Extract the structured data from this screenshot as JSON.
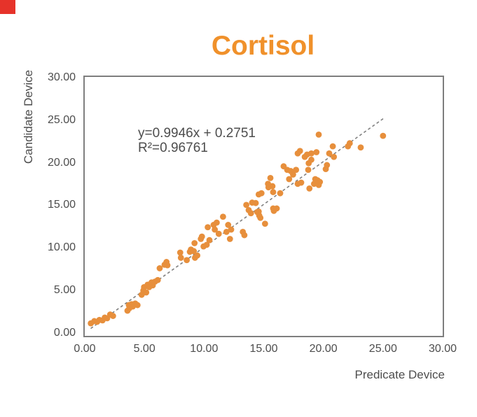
{
  "decorations": {
    "corner_mark_color": "#E6332A"
  },
  "chart_data": {
    "type": "scatter",
    "title": "Cortisol",
    "xlabel": "Predicate Device",
    "ylabel": "Candidate Device",
    "xlim": [
      0,
      30
    ],
    "ylim": [
      0,
      30
    ],
    "grid": false,
    "legend": "none",
    "xtick_labels": [
      "0.00",
      "5.00",
      "10.00",
      "15.00",
      "20.00",
      "25.00",
      "30.00"
    ],
    "ytick_labels": [
      "0.00",
      "5.00",
      "10.00",
      "15.00",
      "20.00",
      "25.00",
      "30.00"
    ],
    "annotation": {
      "equation": "y=0.9946x + 0.2751",
      "r_squared": "R²=0.96761"
    },
    "trendline": {
      "slope": 0.9946,
      "intercept": 0.2751,
      "x_start": 0.5,
      "x_end": 25.1,
      "style": "dashed",
      "color": "#7F7F7F"
    },
    "colors": {
      "points": "#E78F3C",
      "title": "#F0912B",
      "axis_text": "#4D4D4D",
      "border": "#7E7E7E"
    },
    "point_radius": 4.4,
    "points": [
      [
        0.51,
        1.37
      ],
      [
        0.8,
        1.63
      ],
      [
        1.04,
        1.55
      ],
      [
        1.23,
        1.77
      ],
      [
        1.49,
        1.72
      ],
      [
        1.68,
        2.04
      ],
      [
        1.88,
        1.96
      ],
      [
        2.13,
        2.4
      ],
      [
        2.37,
        2.23
      ],
      [
        3.58,
        2.84
      ],
      [
        3.74,
        3.13
      ],
      [
        3.7,
        3.49
      ],
      [
        3.93,
        3.6
      ],
      [
        4.03,
        3.33
      ],
      [
        4.23,
        3.68
      ],
      [
        4.42,
        3.49
      ],
      [
        4.77,
        4.69
      ],
      [
        4.91,
        5.18
      ],
      [
        4.97,
        5.58
      ],
      [
        5.15,
        4.96
      ],
      [
        5.27,
        5.86
      ],
      [
        5.4,
        5.58
      ],
      [
        5.6,
        6.13
      ],
      [
        5.7,
        5.78
      ],
      [
        5.89,
        6.22
      ],
      [
        6.12,
        6.4
      ],
      [
        6.28,
        7.77
      ],
      [
        6.69,
        8.18
      ],
      [
        6.85,
        8.5
      ],
      [
        6.93,
        8.12
      ],
      [
        8.0,
        9.59
      ],
      [
        8.06,
        8.99
      ],
      [
        8.55,
        8.72
      ],
      [
        8.81,
        9.68
      ],
      [
        8.9,
        9.95
      ],
      [
        9.14,
        9.76
      ],
      [
        9.24,
        8.99
      ],
      [
        9.2,
        10.69
      ],
      [
        9.43,
        9.26
      ],
      [
        9.73,
        11.18
      ],
      [
        9.82,
        11.45
      ],
      [
        9.96,
        10.31
      ],
      [
        10.22,
        10.5
      ],
      [
        10.31,
        12.54
      ],
      [
        10.45,
        11.04
      ],
      [
        10.8,
        12.81
      ],
      [
        10.9,
        12.27
      ],
      [
        11.06,
        13.08
      ],
      [
        11.23,
        11.78
      ],
      [
        11.59,
        13.76
      ],
      [
        11.88,
        12.0
      ],
      [
        12.02,
        12.81
      ],
      [
        12.17,
        11.18
      ],
      [
        12.27,
        12.27
      ],
      [
        13.25,
        12.0
      ],
      [
        13.38,
        11.62
      ],
      [
        13.54,
        15.13
      ],
      [
        13.74,
        14.53
      ],
      [
        13.93,
        14.17
      ],
      [
        14.03,
        15.4
      ],
      [
        14.33,
        15.35
      ],
      [
        14.46,
        14.31
      ],
      [
        14.58,
        14.36
      ],
      [
        14.62,
        13.9
      ],
      [
        14.72,
        13.63
      ],
      [
        14.81,
        16.49
      ],
      [
        14.58,
        16.35
      ],
      [
        15.11,
        12.95
      ],
      [
        15.36,
        17.58
      ],
      [
        15.4,
        17.18
      ],
      [
        15.56,
        18.26
      ],
      [
        15.73,
        17.31
      ],
      [
        15.79,
        14.72
      ],
      [
        15.85,
        14.44
      ],
      [
        16.09,
        14.72
      ],
      [
        15.79,
        16.62
      ],
      [
        16.38,
        16.49
      ],
      [
        16.67,
        19.62
      ],
      [
        16.97,
        19.21
      ],
      [
        17.13,
        18.13
      ],
      [
        17.26,
        19.07
      ],
      [
        17.46,
        18.66
      ],
      [
        17.71,
        19.21
      ],
      [
        17.85,
        21.12
      ],
      [
        17.85,
        17.58
      ],
      [
        18.14,
        17.72
      ],
      [
        18.44,
        20.71
      ],
      [
        18.63,
        20.98
      ],
      [
        18.73,
        19.21
      ],
      [
        18.83,
        17.04
      ],
      [
        18.04,
        21.4
      ],
      [
        18.77,
        19.98
      ],
      [
        18.99,
        20.38
      ],
      [
        18.99,
        21.12
      ],
      [
        19.22,
        17.58
      ],
      [
        19.32,
        18.13
      ],
      [
        19.51,
        18.0
      ],
      [
        19.61,
        17.45
      ],
      [
        19.71,
        17.8
      ],
      [
        19.42,
        21.26
      ],
      [
        19.61,
        23.3
      ],
      [
        20.2,
        19.3
      ],
      [
        20.3,
        19.76
      ],
      [
        20.49,
        21.12
      ],
      [
        20.79,
        21.94
      ],
      [
        20.88,
        20.71
      ],
      [
        22.06,
        21.94
      ],
      [
        22.21,
        22.3
      ],
      [
        23.13,
        21.81
      ],
      [
        25.0,
        23.16
      ]
    ]
  }
}
